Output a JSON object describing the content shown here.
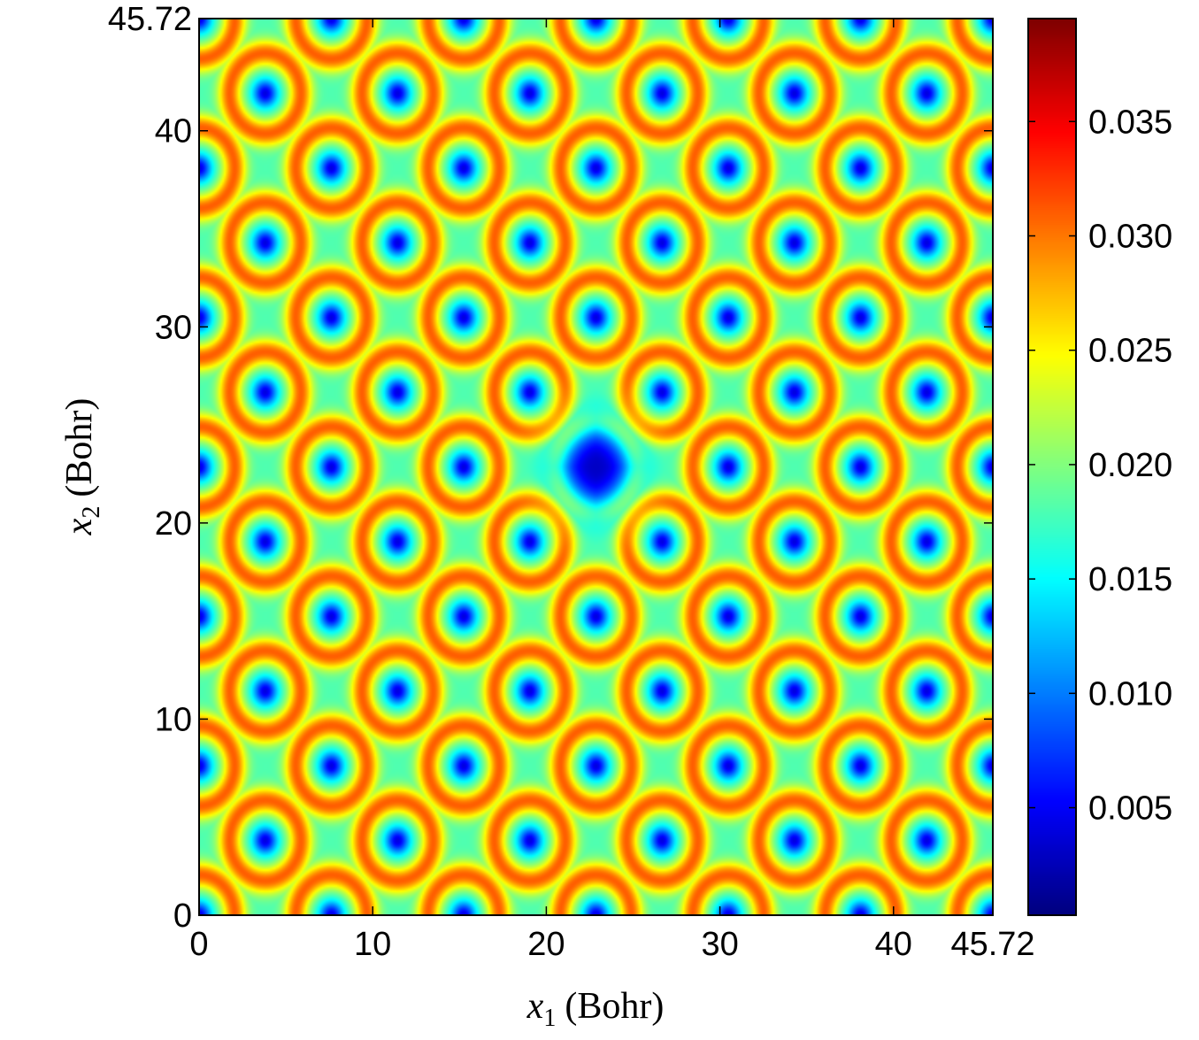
{
  "chart_data": {
    "type": "heatmap",
    "title": "",
    "xlabel": {
      "symbol": "x",
      "subscript": "1",
      "unit": "(Bohr)"
    },
    "ylabel": {
      "symbol": "x",
      "subscript": "2",
      "unit": "(Bohr)"
    },
    "xlim": [
      0,
      45.72
    ],
    "ylim": [
      0,
      45.72
    ],
    "x_ticks": [
      {
        "value": 0,
        "label": "0"
      },
      {
        "value": 10,
        "label": "10"
      },
      {
        "value": 20,
        "label": "20"
      },
      {
        "value": 30,
        "label": "30"
      },
      {
        "value": 40,
        "label": "40"
      },
      {
        "value": 45.72,
        "label": "45.72"
      }
    ],
    "y_ticks": [
      {
        "value": 0,
        "label": "0"
      },
      {
        "value": 10,
        "label": "10"
      },
      {
        "value": 20,
        "label": "20"
      },
      {
        "value": 30,
        "label": "30"
      },
      {
        "value": 40,
        "label": "40"
      },
      {
        "value": 45.72,
        "label": "45.72"
      }
    ],
    "colormap": "jet",
    "colorbar": {
      "range": [
        0.0003,
        0.0395
      ],
      "ticks": [
        {
          "value": 0.005,
          "label": "0.005"
        },
        {
          "value": 0.01,
          "label": "0.010"
        },
        {
          "value": 0.015,
          "label": "0.015"
        },
        {
          "value": 0.02,
          "label": "0.020"
        },
        {
          "value": 0.025,
          "label": "0.025"
        },
        {
          "value": 0.03,
          "label": "0.030"
        },
        {
          "value": 0.035,
          "label": "0.035"
        }
      ]
    },
    "lattice": {
      "period": 7.62,
      "low_sites_a": [
        0,
        0
      ],
      "low_sites_b": [
        3.81,
        3.81
      ],
      "high_ring_value": 0.031,
      "interstitial_value": 0.018,
      "site_minimum": 0.004
    },
    "vacancy": {
      "x": 22.86,
      "y": 22.86,
      "value": 0.003,
      "shape": "diamond"
    }
  }
}
